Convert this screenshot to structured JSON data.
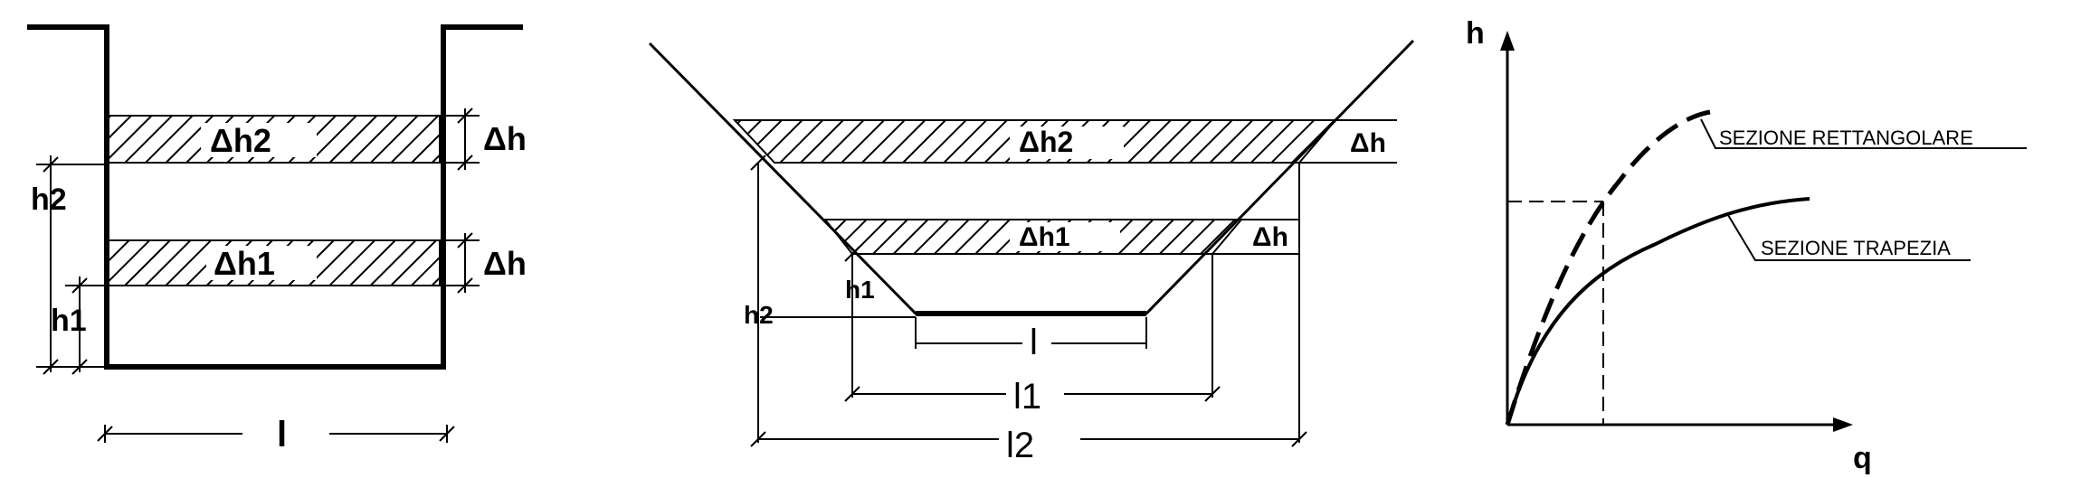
{
  "colors": {
    "ink": "#000000",
    "background": "#ffffff"
  },
  "rect_section": {
    "labels": {
      "dh2": "Δh2",
      "dh1": "Δh1",
      "dh_top": "Δh",
      "dh_bottom": "Δh",
      "h2": "h2",
      "h1": "h1",
      "width": "l"
    }
  },
  "trap_section": {
    "labels": {
      "dh2": "Δh2",
      "dh1": "Δh1",
      "dh_top": "Δh",
      "dh_bottom": "Δh",
      "h2": "h2",
      "h1": "h1",
      "base_width": "l",
      "width1": "l1",
      "width2": "l2"
    }
  },
  "graph": {
    "y_axis_label": "h",
    "x_axis_label": "q",
    "curve_rect_label": "SEZIONE RETTANGOLARE",
    "curve_trap_label": "SEZIONE TRAPEZIA"
  }
}
